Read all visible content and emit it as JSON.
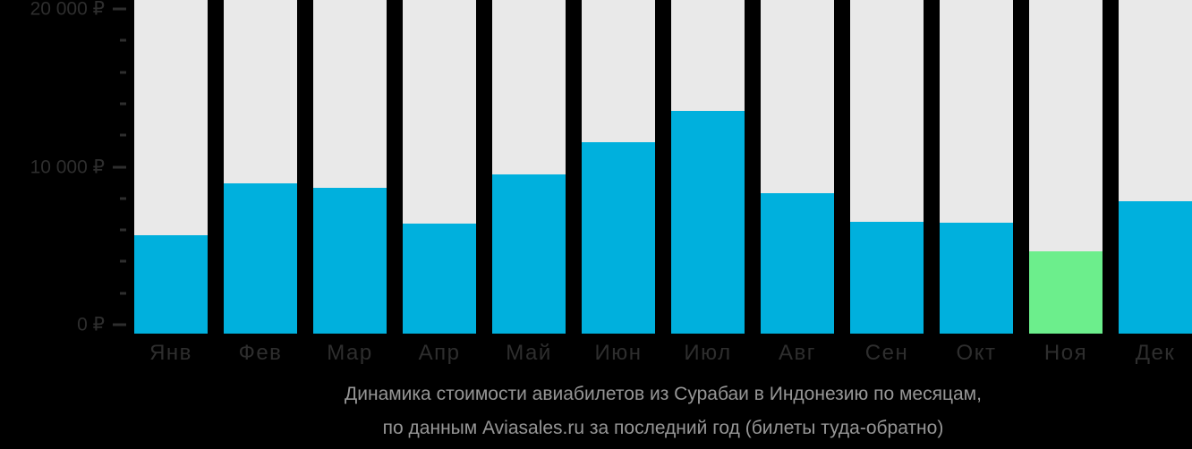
{
  "chart_data": {
    "type": "bar",
    "title": "Динамика стоимости авиабилетов из Сурабаи в Индонезию по месяцам, по данным Aviasales.ru за последний год (билеты туда-обратно)",
    "categories": [
      "Янв",
      "Фев",
      "Мар",
      "Апр",
      "Май",
      "Июн",
      "Июл",
      "Авг",
      "Сен",
      "Окт",
      "Ноя",
      "Дек"
    ],
    "values": [
      6000,
      9200,
      8900,
      6700,
      9700,
      11700,
      13600,
      8600,
      6850,
      6800,
      5000,
      8100
    ],
    "unit": "₽",
    "highlight": {
      "index": 10,
      "category": "Ноя",
      "meaning": "min-price-month"
    },
    "ylim": [
      0,
      20000
    ],
    "yticks_major": [
      {
        "value": 0,
        "label": "0 ₽"
      },
      {
        "value": 10000,
        "label": "10 000 ₽"
      },
      {
        "value": 20000,
        "label": "20 000 ₽"
      }
    ],
    "ytick_minor_step": 2000,
    "grid": false,
    "legend": null
  },
  "caption": {
    "line1": "Динамика стоимости авиабилетов из Сурабаи в Индонезию по месяцам,",
    "line2": "по данным Aviasales.ru за последний год (билеты туда-обратно)"
  },
  "colors": {
    "background": "#000000",
    "track": "#e9e9e9",
    "bar": "#00b0dd",
    "highlight": "#6cee8c",
    "axis_text": "#2e2e2e",
    "tick": "#2e2e2e",
    "caption_text": "#969696"
  }
}
